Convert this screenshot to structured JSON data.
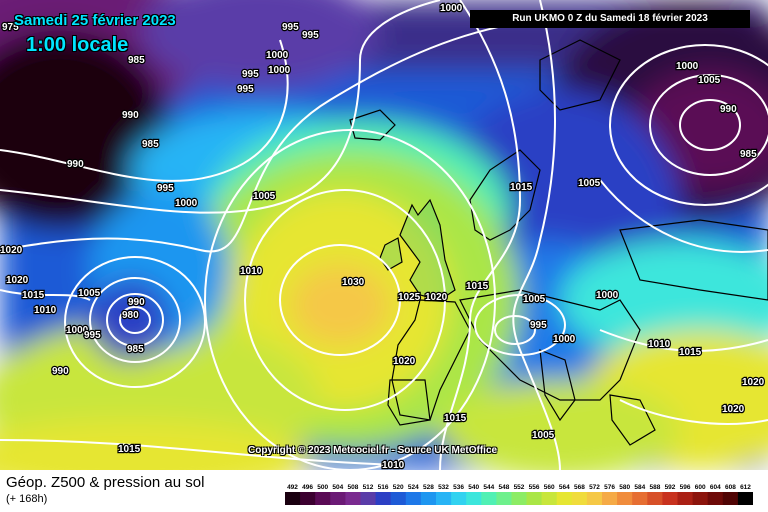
{
  "map": {
    "date_title": "Samedi 25 février 2023",
    "local_time": "1:00 locale",
    "run_info": "Run UKMO 0 Z du Samedi 18 février 2023",
    "copyright": "Copyright © 2023 Meteociel.fr - Source UK MetOffice",
    "isobar_labels": [
      "1000",
      "995",
      "995",
      "1000",
      "995",
      "1000",
      "995",
      "990",
      "985",
      "985",
      "990",
      "995",
      "1000",
      "1005",
      "1020",
      "1020",
      "1015",
      "1010",
      "1005",
      "990",
      "980",
      "985",
      "1000",
      "995",
      "990",
      "1010",
      "1030",
      "1025",
      "1020",
      "1015",
      "1005",
      "1020",
      "995",
      "1000",
      "1000",
      "1015",
      "1010",
      "1015",
      "1015",
      "1005",
      "1015",
      "1010",
      "1005",
      "1000",
      "990",
      "985",
      "1005",
      "1020",
      "1020",
      "975"
    ]
  },
  "footer": {
    "title": "Géop. Z500 & pression au sol",
    "subtitle": "(+ 168h)"
  },
  "legend": {
    "scale_ticks": [
      "492",
      "496",
      "500",
      "504",
      "508",
      "512",
      "516",
      "520",
      "524",
      "528",
      "532",
      "536",
      "540",
      "544",
      "548",
      "552",
      "556",
      "560",
      "564",
      "568",
      "572",
      "576",
      "580",
      "584",
      "588",
      "592",
      "596",
      "600",
      "604",
      "608",
      "612"
    ],
    "scale_colors": [
      "#1a0010",
      "#3c0030",
      "#5a0a55",
      "#6b1a75",
      "#7a2a8f",
      "#5a3ca8",
      "#2c3fc4",
      "#1e5ad6",
      "#1e78e8",
      "#1e96f0",
      "#28b4f5",
      "#32d2f0",
      "#3ce6dc",
      "#50f0b4",
      "#6ef08c",
      "#8cec64",
      "#aae646",
      "#c8e63c",
      "#e6e632",
      "#f0dc3c",
      "#f5c846",
      "#f5aa46",
      "#f08c3c",
      "#e66e32",
      "#d75028",
      "#c8321e",
      "#aa2014",
      "#8c140c",
      "#6e0a08",
      "#500404",
      "#000000"
    ]
  }
}
